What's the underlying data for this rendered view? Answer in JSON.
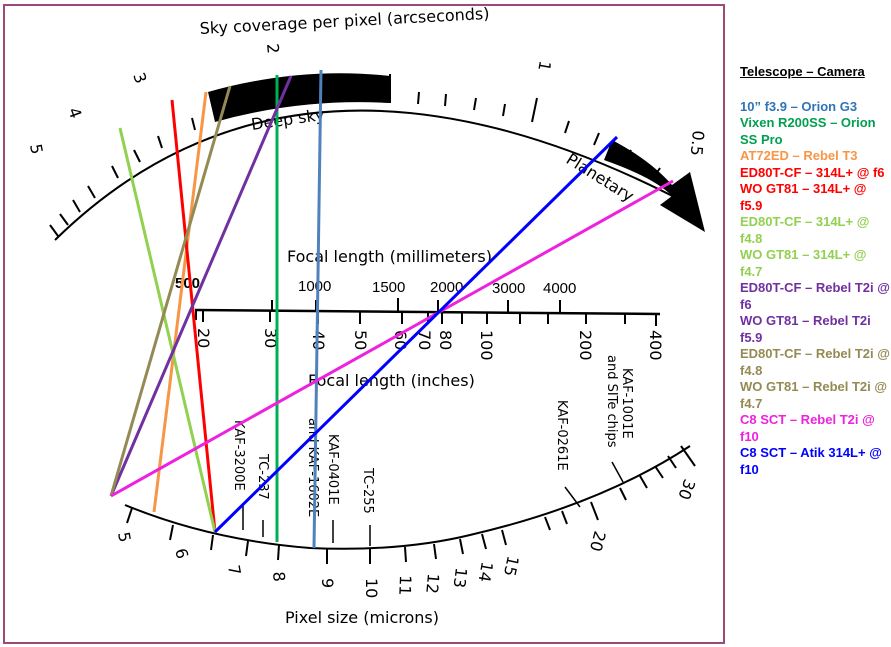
{
  "diagram": {
    "top_axis_title": "Sky coverage per pixel (arcseconds)",
    "top_ticks": [
      "5",
      "4",
      "3",
      "2",
      "1",
      "0.5"
    ],
    "deep_sky_label": "Deep sky",
    "planetary_label": "Planetary",
    "focal_mm_title": "Focal length (millimeters)",
    "focal_mm_ticks": [
      "500",
      "1000",
      "1500",
      "2000",
      "3000",
      "4000"
    ],
    "focal_in_title": "Focal length (inches)",
    "focal_in_ticks": [
      "20",
      "30",
      "40",
      "50",
      "60",
      "70",
      "80",
      "100",
      "200",
      "400"
    ],
    "pixel_title": "Pixel size (microns)",
    "pixel_ticks": [
      "5",
      "6",
      "7",
      "8",
      "9",
      "10",
      "11",
      "12",
      "13",
      "14",
      "15",
      "20",
      "30"
    ],
    "sensors": [
      "KAF-3200E",
      "TC-237",
      "and KAF-1602E",
      "KAF-0401E",
      "TC-255",
      "KAF-0261E",
      "KAF-1001E",
      "and SITe chips"
    ]
  },
  "legend": {
    "title": "Telescope – Camera",
    "items": [
      {
        "label": "10” f3.9 – Orion G3",
        "color": "#2e75b6"
      },
      {
        "label": "Vixen R200SS – Orion SS Pro",
        "color": "#00a050"
      },
      {
        "label": "AT72ED – Rebel  T3",
        "color": "#f79646"
      },
      {
        "label": "ED80T-CF – 314L+ @ f6",
        "color": "#ff0000"
      },
      {
        "label": "WO GT81 – 314L+ @ f5.9",
        "color": "#ff0000"
      },
      {
        "label": "ED80T-CF – 314L+ @ f4.8",
        "color": "#92d050"
      },
      {
        "label": "WO GT81 – 314L+ @ f4.7",
        "color": "#92d050"
      },
      {
        "label": "ED80T-CF – Rebel T2i @ f6",
        "color": "#7030a0"
      },
      {
        "label": "WO GT81 – Rebel T2i f5.9",
        "color": "#7030a0"
      },
      {
        "label": "ED80T-CF – Rebel T2i @ f4.8",
        "color": "#948a54"
      },
      {
        "label": "WO GT81 – Rebel T2i @ f4.7",
        "color": "#948a54"
      },
      {
        "label": "C8 SCT – Rebel  T2i @ f10",
        "color": "#ee22dd"
      },
      {
        "label": "C8 SCT – Atik 314L+ @ f10",
        "color": "#0000ff"
      }
    ]
  }
}
